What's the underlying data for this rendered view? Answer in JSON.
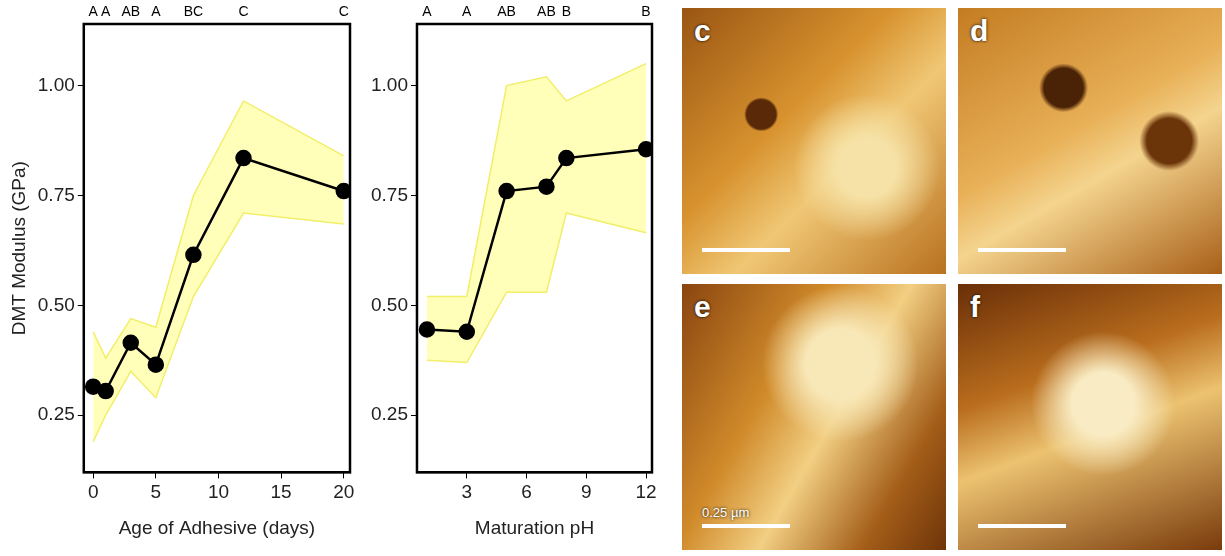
{
  "chart_data": [
    {
      "type": "line",
      "x_label": "Age of Adhesive (days)",
      "y_label": "DMT Modulus (GPa)",
      "x": [
        0,
        1,
        3,
        5,
        8,
        12,
        20
      ],
      "values": [
        0.315,
        0.305,
        0.415,
        0.365,
        0.615,
        0.835,
        0.76
      ],
      "lower": [
        0.19,
        0.25,
        0.35,
        0.29,
        0.52,
        0.71,
        0.685
      ],
      "upper": [
        0.44,
        0.38,
        0.47,
        0.45,
        0.75,
        0.965,
        0.84
      ],
      "group_labels": [
        "A",
        "A",
        "AB",
        "A",
        "BC",
        "C",
        "C"
      ],
      "color": "#000000",
      "marker": "circle",
      "xlim": [
        -0.75,
        20.5
      ],
      "xticks": [
        0,
        5,
        10,
        15,
        20
      ],
      "ylim": [
        0.12,
        1.14
      ],
      "yticks": [
        0.25,
        {
          "value": 0.5,
          "label": "0.50"
        },
        0.75,
        {
          "value": 1.0,
          "label": "1.00"
        }
      ]
    },
    {
      "type": "line",
      "x_label": "Maturation pH",
      "x": [
        1,
        3,
        5,
        7,
        8,
        12
      ],
      "values": [
        0.445,
        0.44,
        0.76,
        0.77,
        0.835,
        0.855
      ],
      "lower": [
        0.375,
        0.37,
        0.53,
        0.53,
        0.71,
        0.665
      ],
      "upper": [
        0.52,
        0.52,
        1.0,
        1.02,
        0.965,
        1.05
      ],
      "group_labels": [
        "A",
        "A",
        "AB",
        "AB",
        "B",
        "B"
      ],
      "color": "#000000",
      "marker": "circle",
      "xlim": [
        0.5,
        12.3
      ],
      "xticks": [
        3,
        6,
        9,
        12
      ],
      "ylim": [
        0.12,
        1.14
      ],
      "yticks": [
        0.25,
        {
          "value": 0.5,
          "label": "0.50"
        },
        0.75,
        {
          "value": 1.0,
          "label": "1.00"
        }
      ]
    }
  ],
  "image_panels": [
    {
      "label": "c"
    },
    {
      "label": "d"
    },
    {
      "label": "e",
      "scale_bar": "0.25 µm"
    },
    {
      "label": "f"
    }
  ]
}
